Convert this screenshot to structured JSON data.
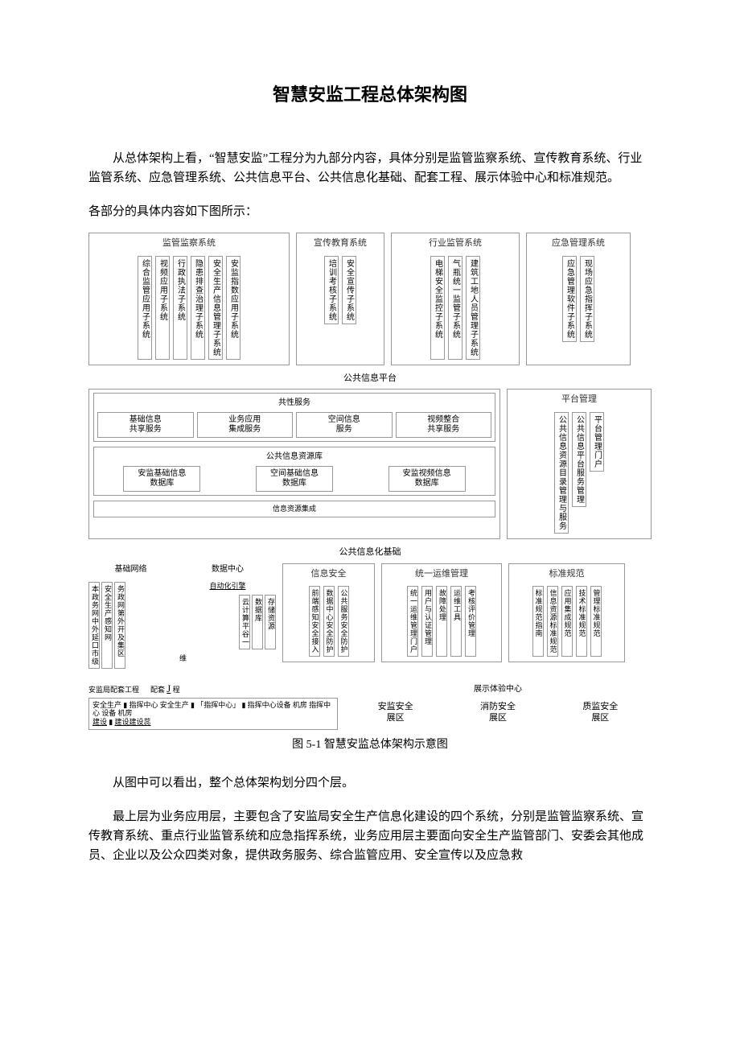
{
  "title": "智慧安监工程总体架构图",
  "intro": "从总体架构上看，“智慧安监”工程分为九部分内容，具体分别是监管监察系统、宣传教育系统、行业监管系统、应急管理系统、公共信息平台、公共信息化基础、配套工程、展示体验中心和标准规范。",
  "subintro": "各部分的具体内容如下图所示：",
  "caption": "图 5-1 智慧安监总体架构示意图",
  "body1": "从图中可以看出，整个总体架构划分四个层。",
  "body2": "最上层为业务应用层，主要包含了安监局安全生产信息化建设的四个系统，分别是监管监察系统、宣传教育系统、重点行业监管系统和应急指挥系统，业务应用层主要面向安全生产监管部门、安委会其他成员、企业以及公众四类对象，提供政务服务、综合监管应用、安全宣传以及应急救",
  "top_systems": [
    {
      "title": "监管监察系统",
      "items": [
        "综合监管应用子系统",
        "视频应用子系统",
        "行政执法子系统",
        "隐患排查治理子系统",
        "安全生产信息管理子系统",
        "安监指数应用子系统"
      ]
    },
    {
      "title": "宣传教育系统",
      "items": [
        "培训考核子系统",
        "安全宣传子系统"
      ]
    },
    {
      "title": "行业监管系统",
      "items": [
        "电梯安全监控子系统",
        "气瓶统一监管子系统",
        "建筑工地人员管理子系统"
      ]
    },
    {
      "title": "应急管理系统",
      "items": [
        "应急管理软件子系统",
        "现场应急指挥子系统"
      ]
    }
  ],
  "platform": {
    "title": "公共信息平台",
    "left": {
      "svc_title": "共性服务",
      "services": [
        "基础信息\n共享服务",
        "业务应用\n集成服务",
        "空间信息\n服务",
        "视频整合\n共享服务"
      ],
      "res_title": "公共信息资源库",
      "resources": [
        "安监基础信息\n数据库",
        "空间基础信息\n数据库",
        "安监视频信息\n数据库"
      ],
      "integ": "信息资源集成"
    },
    "right": {
      "title": "平台管理",
      "items": [
        "公共信息资源目录管理与服务",
        "公共信息平台服务管理",
        "平台管理门户"
      ]
    }
  },
  "infra": {
    "title": "公共信息化基础",
    "net": {
      "title": "基础网络",
      "items": [
        "本政务网中外延口市级",
        "安全生产感知网",
        "务政网第外开及集区"
      ]
    },
    "dc": {
      "title": "数据中心",
      "auto": "自动化引擎",
      "items": [
        "云计算平谷一",
        "数据库",
        "存储资源"
      ],
      "om": "维"
    },
    "sec": {
      "title": "信息安全",
      "items": [
        "前端感知安全接入",
        "数据中心安全防护",
        "公共服务安全防护"
      ]
    },
    "ops": {
      "title": "统一运维管理",
      "items": [
        "统一运维管理门户",
        "用户与认证管理",
        "故障处理",
        "运维工具",
        "考核评价管理"
      ]
    },
    "std": {
      "title": "标准规范",
      "items": [
        "标准规范指南",
        "信息资源标准规范",
        "应用集成规范",
        "技术标准规范",
        "管理标准规范"
      ]
    }
  },
  "support": {
    "title_left": "安监局配套工程",
    "title_mid": "配套",
    "title_j": "J",
    "title_end": "程",
    "text1": "安全生产",
    "text2": "指挥中心 安全生产",
    "text3": "「指挥中心」",
    "text4": "指挥中心设备 机房 指挥中心 设备 机房",
    "text5": "建设",
    "text6": "建设建设蕊"
  },
  "hall": {
    "title": "展示体验中心",
    "items": [
      "安监安全\n展区",
      "消防安全\n展区",
      "质监安全\n展区"
    ]
  }
}
